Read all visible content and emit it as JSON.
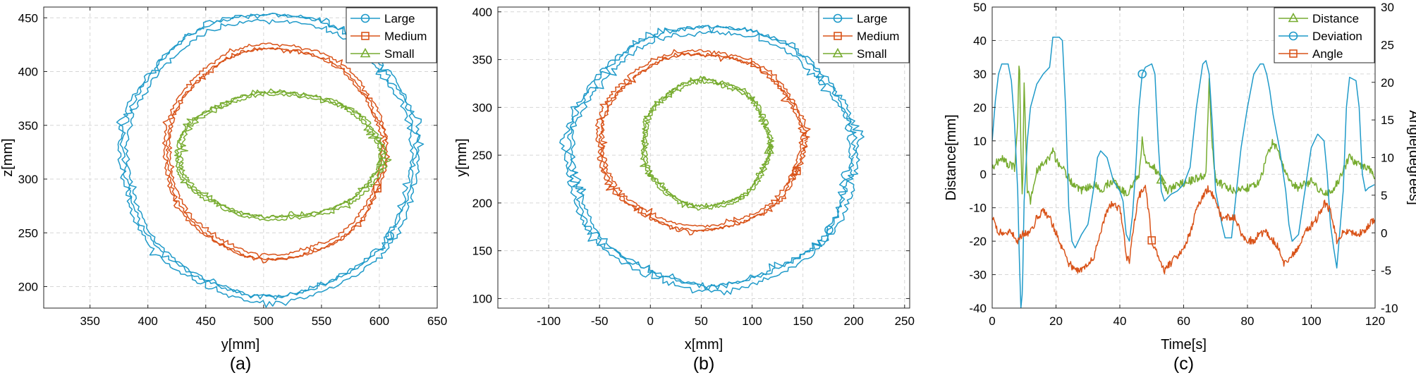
{
  "figure": {
    "captions": [
      "(a)",
      "(b)",
      "(c)"
    ]
  },
  "chart_data": [
    {
      "type": "line",
      "panel": "(a)",
      "xlabel": "y[mm]",
      "ylabel": "z[mm]",
      "xlim": [
        310,
        650
      ],
      "ylim": [
        180,
        460
      ],
      "xticks": [
        350,
        400,
        450,
        500,
        550,
        600,
        650
      ],
      "yticks": [
        200,
        250,
        300,
        350,
        400,
        450
      ],
      "grid": true,
      "legend_position": "top-right",
      "series": [
        {
          "name": "Large",
          "color": "#1f9ac9",
          "marker": "circle",
          "shape": "ellipse",
          "center": [
            505,
            321
          ],
          "radii": [
            126,
            131
          ],
          "noise": 3.5
        },
        {
          "name": "Medium",
          "color": "#d95319",
          "marker": "square",
          "shape": "ellipse",
          "center": [
            510,
            325
          ],
          "radii": [
            94,
            98
          ],
          "noise": 2.5
        },
        {
          "name": "Small",
          "color": "#77ac30",
          "marker": "triangle",
          "shape": "ellipse",
          "center": [
            514,
            322
          ],
          "radii": [
            88,
            58
          ],
          "noise": 3.0
        }
      ]
    },
    {
      "type": "line",
      "panel": "(b)",
      "xlabel": "x[mm]",
      "ylabel": "y[mm]",
      "xlim": [
        -150,
        255
      ],
      "ylim": [
        90,
        405
      ],
      "xticks": [
        -100,
        -50,
        0,
        50,
        100,
        150,
        200,
        250
      ],
      "yticks": [
        100,
        150,
        200,
        250,
        300,
        350,
        400
      ],
      "grid": true,
      "legend_position": "top-right",
      "series": [
        {
          "name": "Large",
          "color": "#1f9ac9",
          "marker": "circle",
          "shape": "ellipse",
          "center": [
            60,
            248
          ],
          "radii": [
            140,
            135
          ],
          "noise": 5
        },
        {
          "name": "Medium",
          "color": "#d95319",
          "marker": "square",
          "shape": "ellipse",
          "center": [
            50,
            265
          ],
          "radii": [
            100,
            92
          ],
          "noise": 3.5
        },
        {
          "name": "Small",
          "color": "#77ac30",
          "marker": "triangle",
          "shape": "ellipse",
          "center": [
            55,
            262
          ],
          "radii": [
            62,
            66
          ],
          "noise": 3
        }
      ]
    },
    {
      "type": "line",
      "panel": "(c)",
      "xlabel": "Time[s]",
      "ylabel": "Distance[mm]",
      "y2label": "Angle[degrees]",
      "xlim": [
        0,
        120
      ],
      "ylim": [
        -40,
        50
      ],
      "y2lim": [
        -10,
        30
      ],
      "xticks": [
        0,
        20,
        40,
        60,
        80,
        100,
        120
      ],
      "yticks": [
        -40,
        -30,
        -20,
        -10,
        0,
        10,
        20,
        30,
        40,
        50
      ],
      "y2ticks": [
        -10,
        -5,
        0,
        5,
        10,
        15,
        20,
        25,
        30
      ],
      "grid": true,
      "legend_position": "top-right",
      "series": [
        {
          "name": "Distance",
          "color": "#77ac30",
          "marker": "triangle",
          "axis": "left",
          "noise": 1.2,
          "x": [
            0,
            3,
            5,
            7,
            8,
            8.5,
            9,
            9.5,
            10,
            11,
            12,
            13,
            14,
            16,
            18,
            19,
            20,
            22,
            24,
            26,
            28,
            30,
            32,
            34,
            36,
            38,
            40,
            42,
            44,
            46,
            47,
            48,
            50,
            52,
            55,
            58,
            62,
            65,
            67,
            68,
            69,
            70,
            72,
            76,
            80,
            84,
            86,
            88,
            90,
            92,
            94,
            96,
            98,
            100,
            102,
            104,
            106,
            108,
            110,
            112,
            115,
            118,
            120
          ],
          "values": [
            2,
            5,
            3,
            2,
            15,
            38,
            8,
            -10,
            28,
            -5,
            -8,
            -3,
            1,
            3,
            5,
            8,
            4,
            2,
            -1,
            -4,
            -5,
            -4,
            -3,
            -5,
            -3,
            -2,
            -4,
            -6,
            -3,
            0,
            10,
            4,
            3,
            0,
            -5,
            -3,
            -2,
            -1,
            0,
            28,
            8,
            -2,
            -3,
            -5,
            -4,
            -2,
            5,
            10,
            6,
            0,
            -3,
            -4,
            -3,
            -2,
            -4,
            -6,
            -5,
            -3,
            1,
            5,
            3,
            2,
            -1
          ]
        },
        {
          "name": "Deviation",
          "color": "#1f9ac9",
          "marker": "circle",
          "axis": "left",
          "noise": 0,
          "x": [
            0,
            1,
            2,
            3,
            5,
            6,
            7,
            8,
            8.5,
            9,
            9.5,
            10,
            11,
            12,
            14,
            16,
            18,
            19,
            21,
            22,
            23,
            24,
            25,
            26,
            28,
            30,
            32,
            33,
            34,
            36,
            38,
            40,
            41,
            42,
            43,
            44,
            45,
            46,
            47,
            48,
            50,
            51,
            52,
            53,
            54,
            56,
            58,
            60,
            62,
            64,
            66,
            67,
            68,
            69,
            70,
            72,
            73,
            74,
            75,
            76,
            78,
            80,
            82,
            84,
            85,
            86,
            87,
            88,
            90,
            92,
            93,
            94,
            96,
            98,
            100,
            102,
            104,
            105,
            106,
            107,
            108,
            110,
            111,
            112,
            114,
            115,
            116,
            117,
            118,
            120
          ],
          "values": [
            10,
            22,
            30,
            33,
            33,
            28,
            15,
            -5,
            -25,
            -40,
            -35,
            -8,
            10,
            20,
            27,
            30,
            32,
            41,
            41,
            40,
            20,
            -10,
            -20,
            -22,
            -18,
            -15,
            -3,
            5,
            7,
            5,
            -2,
            -5,
            -8,
            -18,
            -20,
            -12,
            2,
            20,
            30,
            32,
            33,
            30,
            10,
            -5,
            -8,
            -6,
            -5,
            -3,
            2,
            20,
            33,
            34,
            30,
            15,
            -5,
            -15,
            -19,
            -19,
            -19,
            -10,
            8,
            20,
            30,
            33,
            33,
            30,
            25,
            18,
            8,
            -5,
            -15,
            -20,
            -18,
            -5,
            8,
            12,
            10,
            0,
            -15,
            -22,
            -28,
            -5,
            20,
            29,
            28,
            20,
            0,
            -5,
            -4,
            -3
          ]
        },
        {
          "name": "Angle",
          "color": "#d95319",
          "marker": "square",
          "axis": "right",
          "noise": 0.5,
          "x": [
            0,
            2,
            4,
            6,
            8,
            10,
            12,
            13,
            14,
            16,
            18,
            20,
            22,
            24,
            26,
            28,
            30,
            32,
            34,
            36,
            38,
            40,
            41,
            42,
            43,
            44,
            46,
            48,
            49,
            50,
            52,
            54,
            56,
            58,
            60,
            62,
            64,
            66,
            68,
            70,
            72,
            74,
            76,
            78,
            80,
            82,
            84,
            86,
            88,
            90,
            91,
            92,
            94,
            96,
            98,
            100,
            102,
            104,
            106,
            107,
            108,
            110,
            112,
            114,
            116,
            118,
            120
          ],
          "values": [
            2,
            0,
            0,
            0,
            -1,
            0,
            0,
            1,
            2,
            3,
            2,
            0,
            -2,
            -4,
            -5,
            -5,
            -4,
            -3,
            0,
            3,
            4,
            3,
            1,
            -3,
            -4,
            0,
            5,
            6,
            3,
            -1,
            -3,
            -5,
            -4,
            -3,
            -2,
            0,
            3,
            5,
            6,
            4,
            2,
            2,
            2,
            0,
            -1,
            -1,
            0,
            0,
            -1,
            -2,
            -4,
            -4,
            -3,
            -2,
            0,
            1,
            2,
            4,
            3,
            1,
            -1,
            0,
            0,
            0,
            0,
            1,
            2
          ]
        }
      ]
    }
  ]
}
